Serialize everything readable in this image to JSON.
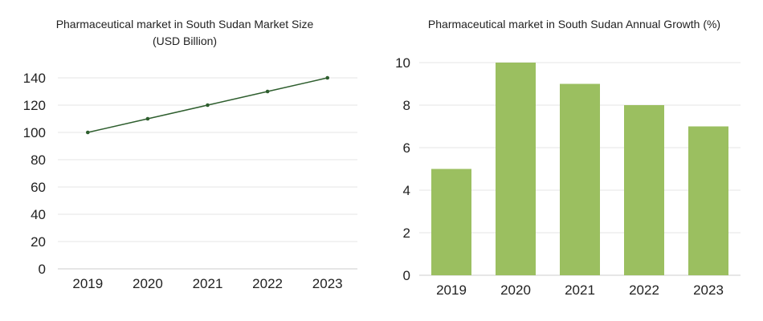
{
  "chart_data": [
    {
      "type": "line",
      "title": "Pharmaceutical market in South Sudan Market Size",
      "subtitle": "(USD Billion)",
      "categories": [
        "2019",
        "2020",
        "2021",
        "2022",
        "2023"
      ],
      "values": [
        100,
        110,
        120,
        130,
        140
      ],
      "yticks": [
        "0",
        "20",
        "40",
        "60",
        "80",
        "100",
        "120",
        "140"
      ],
      "ylim": [
        0,
        140
      ],
      "grid": true,
      "color": "#2e5e2e"
    },
    {
      "type": "bar",
      "title": "Pharmaceutical market in South Sudan Annual Growth (%)",
      "categories": [
        "2019",
        "2020",
        "2021",
        "2022",
        "2023"
      ],
      "values": [
        5,
        10,
        9,
        8,
        7
      ],
      "yticks": [
        "0",
        "2",
        "4",
        "6",
        "8",
        "10"
      ],
      "ylim": [
        0,
        10
      ],
      "grid": true,
      "color": "#9bbf60"
    }
  ]
}
